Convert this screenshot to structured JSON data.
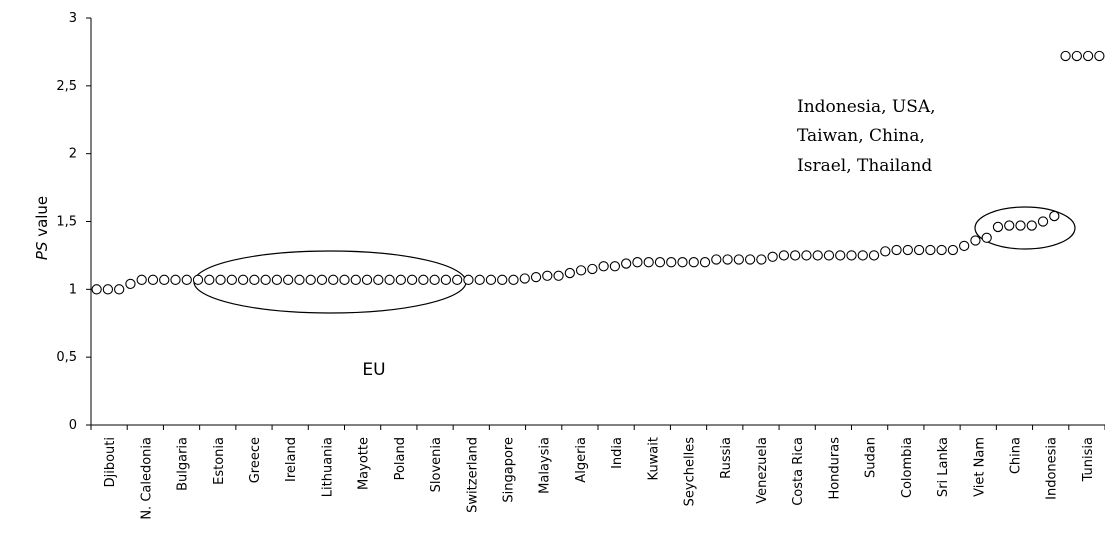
{
  "chart_data": {
    "type": "scatter",
    "title": "",
    "xlabel": "",
    "ylabel": "PS value",
    "ylabel_italic": "PS",
    "ylabel_rest": " value",
    "ylim": [
      0,
      3
    ],
    "yticks": [
      "0",
      "0,5",
      "1",
      "1,5",
      "2",
      "2,5",
      "3"
    ],
    "ytick_values": [
      0,
      0.5,
      1,
      1.5,
      2,
      2.5,
      3
    ],
    "grid": false,
    "categories": [
      "Djibouti",
      "N. Caledonia",
      "Bulgaria",
      "Estonia",
      "Greece",
      "Ireland",
      "Lithuania",
      "Mayotte",
      "Poland",
      "Slovenia",
      "Switzerland",
      "Singapore",
      "Malaysia",
      "Algeria",
      "India",
      "Kuwait",
      "Seychelles",
      "Russia",
      "Venezuela",
      "Costa Rica",
      "Honduras",
      "Sudan",
      "Colombia",
      "Sri Lanka",
      "Viet Nam",
      "China",
      "Indonesia",
      "Tunisia"
    ],
    "values": [
      1.0,
      1.0,
      1.0,
      1.04,
      1.07,
      1.07,
      1.07,
      1.07,
      1.07,
      1.07,
      1.07,
      1.07,
      1.07,
      1.07,
      1.07,
      1.07,
      1.07,
      1.07,
      1.07,
      1.07,
      1.07,
      1.07,
      1.07,
      1.07,
      1.07,
      1.07,
      1.07,
      1.07,
      1.07,
      1.07,
      1.07,
      1.07,
      1.07,
      1.07,
      1.07,
      1.07,
      1.07,
      1.07,
      1.08,
      1.09,
      1.1,
      1.1,
      1.12,
      1.14,
      1.15,
      1.17,
      1.17,
      1.19,
      1.2,
      1.2,
      1.2,
      1.2,
      1.2,
      1.2,
      1.2,
      1.22,
      1.22,
      1.22,
      1.22,
      1.22,
      1.24,
      1.25,
      1.25,
      1.25,
      1.25,
      1.25,
      1.25,
      1.25,
      1.25,
      1.25,
      1.28,
      1.29,
      1.29,
      1.29,
      1.29,
      1.29,
      1.29,
      1.32,
      1.36,
      1.38,
      1.46,
      1.47,
      1.47,
      1.47,
      1.5,
      1.54,
      2.72,
      2.72,
      2.72,
      2.72
    ],
    "annotations": [
      {
        "id": "eu",
        "text": "EU"
      },
      {
        "id": "group",
        "lines": [
          "Indonesia, USA,",
          "Taiwan, China,",
          "Israel, Thailand"
        ]
      }
    ]
  }
}
